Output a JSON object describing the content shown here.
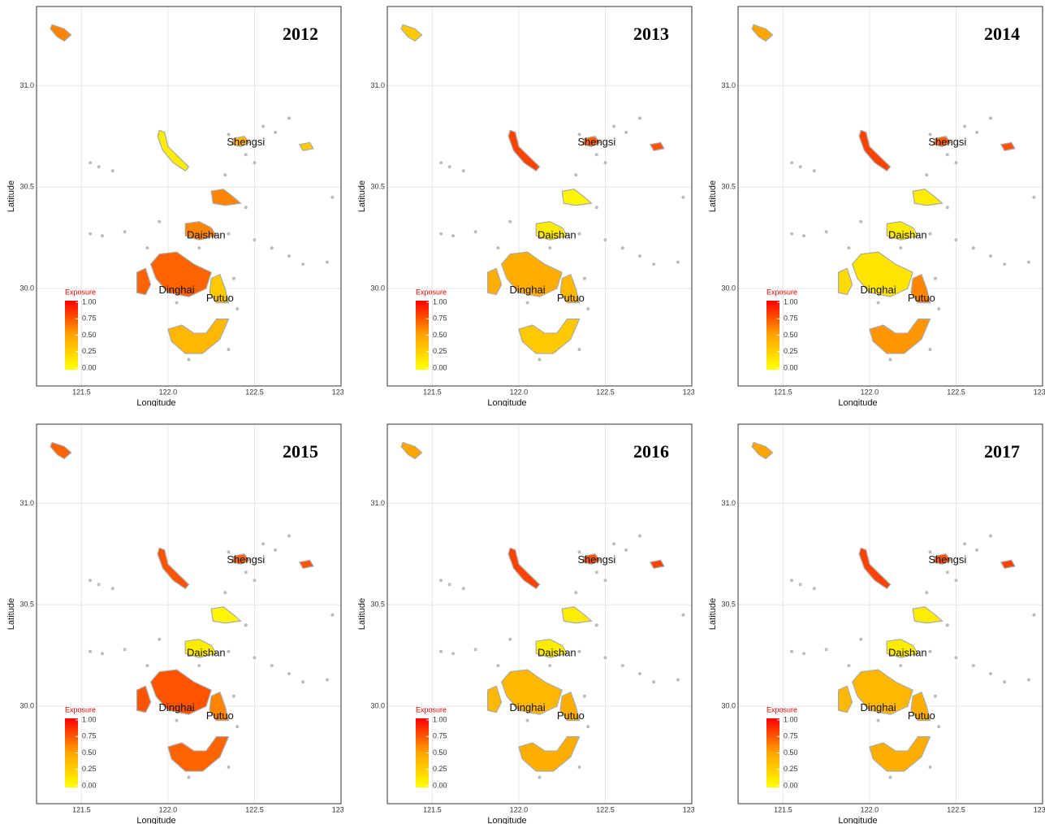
{
  "x_label": "Longitude",
  "y_label": "Latitude",
  "xlim": [
    121.24,
    123.0
  ],
  "ylim": [
    29.52,
    31.39
  ],
  "xticks": [
    121.5,
    {
      "value": 122,
      "label": "122.0"
    },
    122.5,
    {
      "value": 123,
      "label": "123.0"
    }
  ],
  "yticks": [
    {
      "value": 30,
      "label": "30.0"
    },
    30.5,
    {
      "value": 31,
      "label": "31.0"
    }
  ],
  "legend_title": "Exposure",
  "legend_lim": [
    0,
    1
  ],
  "legend_ticks": [
    {
      "value": 0,
      "label": "0.00"
    },
    {
      "value": 0.25,
      "label": "0.25"
    },
    {
      "value": 0.5,
      "label": "0.50"
    },
    {
      "value": 0.75,
      "label": "0.75"
    },
    {
      "value": 1,
      "label": "1.00"
    }
  ],
  "place_labels": [
    "Shengsi",
    "Daishan",
    "Dinghai",
    "Putuo"
  ],
  "panels": [
    {
      "year": "2012",
      "exposure": [
        0.6,
        0.1,
        0.4,
        0.6,
        0.6,
        0.7,
        0.7,
        0.3,
        0.4,
        0.3
      ]
    },
    {
      "year": "2013",
      "exposure": [
        0.3,
        0.8,
        0.7,
        0.05,
        0.1,
        0.45,
        0.45,
        0.4,
        0.3,
        0.75
      ]
    },
    {
      "year": "2014",
      "exposure": [
        0.5,
        0.8,
        0.7,
        0.1,
        0.1,
        0.15,
        0.2,
        0.6,
        0.55,
        0.75
      ]
    },
    {
      "year": "2015",
      "exposure": [
        0.7,
        0.75,
        0.7,
        0.05,
        0.1,
        0.75,
        0.75,
        0.6,
        0.7,
        0.75
      ]
    },
    {
      "year": "2016",
      "exposure": [
        0.5,
        0.8,
        0.75,
        0.1,
        0.1,
        0.4,
        0.4,
        0.45,
        0.45,
        0.8
      ]
    },
    {
      "year": "2017",
      "exposure": [
        0.5,
        0.8,
        0.75,
        0.1,
        0.1,
        0.4,
        0.4,
        0.45,
        0.45,
        0.8
      ]
    }
  ]
}
